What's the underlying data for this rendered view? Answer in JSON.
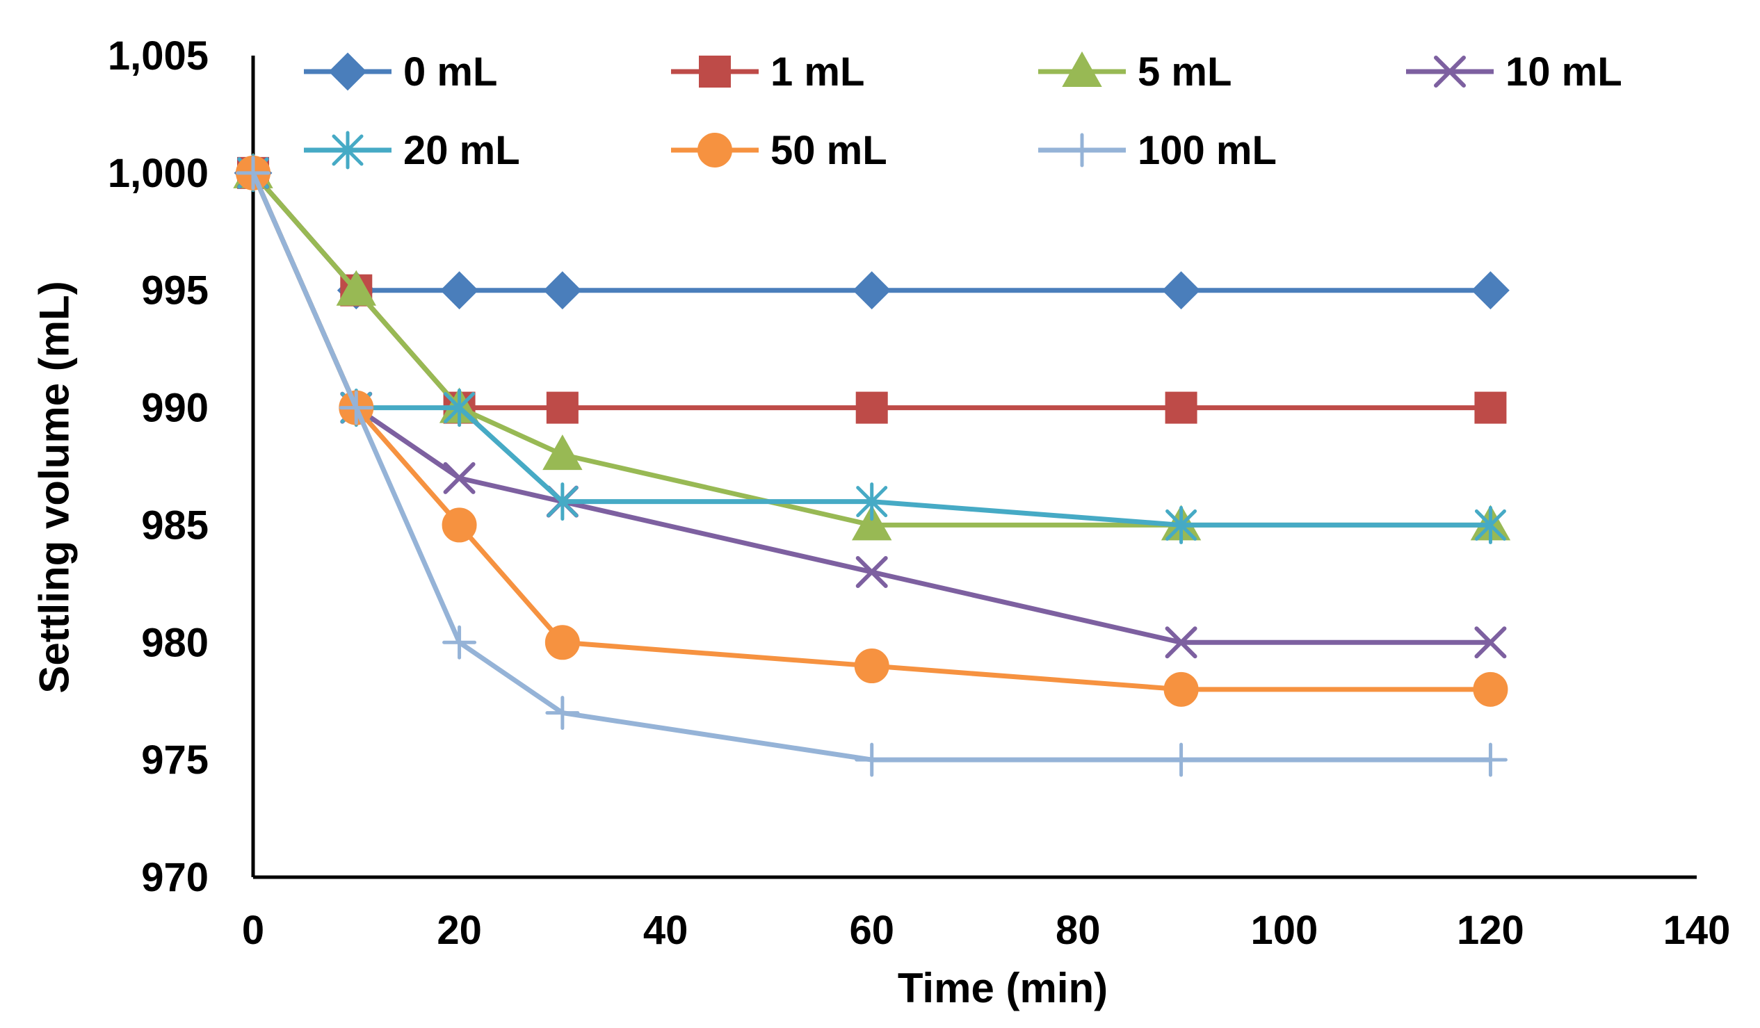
{
  "chart_data": {
    "type": "line",
    "title": "",
    "xlabel": "Time (min)",
    "ylabel": "Settling volume (mL)",
    "xlim": [
      0,
      140
    ],
    "ylim": [
      970,
      1005
    ],
    "x_ticks": [
      0,
      20,
      40,
      60,
      80,
      100,
      120,
      140
    ],
    "x_tick_labels": [
      "0",
      "20",
      "40",
      "60",
      "80",
      "100",
      "120",
      "140"
    ],
    "y_ticks": [
      970,
      975,
      980,
      985,
      990,
      995,
      1000,
      1005
    ],
    "y_tick_labels": [
      "970",
      "975",
      "980",
      "985",
      "990",
      "995",
      "1,000",
      "1,005"
    ],
    "grid": false,
    "legend_position": "top",
    "x": [
      0,
      10,
      20,
      30,
      60,
      90,
      120
    ],
    "series": [
      {
        "name": "0 mL",
        "color": "#4a7ebb",
        "marker": "diamond",
        "values": [
          1000,
          995,
          995,
          995,
          995,
          995,
          995
        ]
      },
      {
        "name": "1 mL",
        "color": "#be4b48",
        "marker": "square",
        "values": [
          1000,
          995,
          990,
          990,
          990,
          990,
          990
        ]
      },
      {
        "name": "5 mL",
        "color": "#98b954",
        "marker": "triangle",
        "values": [
          1000,
          995,
          990,
          988,
          985,
          985,
          985
        ]
      },
      {
        "name": "10 mL",
        "color": "#7d60a0",
        "marker": "x",
        "values": [
          1000,
          990,
          987,
          986,
          983,
          980,
          980
        ]
      },
      {
        "name": "20 mL",
        "color": "#46aac5",
        "marker": "star",
        "values": [
          1000,
          990,
          990,
          986,
          986,
          985,
          985
        ]
      },
      {
        "name": "50 mL",
        "color": "#f69240",
        "marker": "circle",
        "values": [
          1000,
          990,
          985,
          980,
          979,
          978,
          978
        ]
      },
      {
        "name": "100 mL",
        "color": "#95b3d7",
        "marker": "plus",
        "values": [
          1000,
          990,
          980,
          977,
          975,
          975,
          975
        ]
      }
    ]
  }
}
